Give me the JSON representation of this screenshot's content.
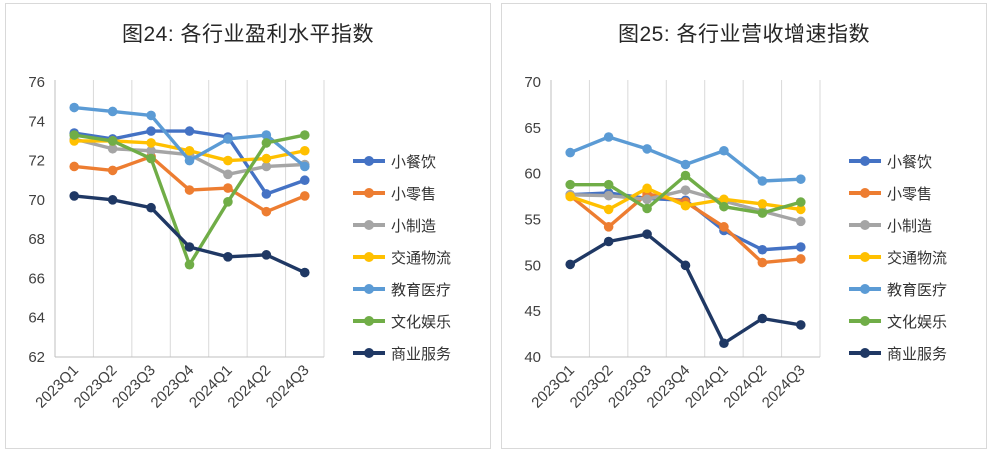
{
  "page": {
    "background": "#ffffff",
    "panel_border_color": "#d9d9d9",
    "grid_color": "#d9d9d9",
    "tick_label_color": "#404040",
    "title_color": "#262626"
  },
  "chart_data": [
    {
      "type": "line",
      "title": "图24: 各行业盈利水平指数",
      "categories": [
        "2023Q1",
        "2023Q2",
        "2023Q3",
        "2023Q4",
        "2024Q1",
        "2024Q2",
        "2024Q3"
      ],
      "ylim": [
        62,
        76
      ],
      "ytick_step": 2,
      "yticks": [
        76,
        74,
        72,
        70,
        68,
        66,
        64,
        62
      ],
      "grid": "vertical-only",
      "legend_position": "right",
      "series": [
        {
          "name": "小餐饮",
          "color": "#4472C4",
          "values": [
            73.4,
            73.1,
            73.5,
            73.5,
            73.2,
            70.3,
            71.0
          ]
        },
        {
          "name": "小零售",
          "color": "#ED7D31",
          "values": [
            71.7,
            71.5,
            72.2,
            70.5,
            70.6,
            69.4,
            70.2
          ]
        },
        {
          "name": "小制造",
          "color": "#A5A5A5",
          "values": [
            73.1,
            72.6,
            72.5,
            72.3,
            71.3,
            71.7,
            71.8
          ]
        },
        {
          "name": "交通物流",
          "color": "#FFC000",
          "values": [
            73.0,
            73.0,
            72.9,
            72.5,
            72.0,
            72.1,
            72.5
          ]
        },
        {
          "name": "教育医疗",
          "color": "#5B9BD5",
          "values": [
            74.7,
            74.5,
            74.3,
            72.0,
            73.1,
            73.3,
            71.7
          ]
        },
        {
          "name": "文化娱乐",
          "color": "#70AD47",
          "values": [
            73.3,
            73.0,
            72.1,
            66.7,
            69.9,
            72.9,
            73.3
          ]
        },
        {
          "name": "商业服务",
          "color": "#1F3864",
          "values": [
            70.2,
            70.0,
            69.6,
            67.6,
            67.1,
            67.2,
            66.3
          ]
        }
      ]
    },
    {
      "type": "line",
      "title": "图25: 各行业营收增速指数",
      "categories": [
        "2023Q1",
        "2023Q2",
        "2023Q3",
        "2023Q4",
        "2024Q1",
        "2024Q2",
        "2024Q3"
      ],
      "ylim": [
        40,
        70
      ],
      "ytick_step": 5,
      "yticks": [
        70,
        65,
        60,
        55,
        50,
        45,
        40
      ],
      "grid": "vertical-only",
      "legend_position": "right",
      "series": [
        {
          "name": "小餐饮",
          "color": "#4472C4",
          "values": [
            57.7,
            57.9,
            57.3,
            57.1,
            53.8,
            51.7,
            52.0
          ]
        },
        {
          "name": "小零售",
          "color": "#ED7D31",
          "values": [
            57.6,
            54.2,
            57.8,
            56.9,
            54.2,
            50.3,
            50.7
          ]
        },
        {
          "name": "小制造",
          "color": "#A5A5A5",
          "values": [
            57.7,
            57.6,
            57.2,
            58.2,
            57.0,
            55.9,
            54.8
          ]
        },
        {
          "name": "交通物流",
          "color": "#FFC000",
          "values": [
            57.5,
            56.1,
            58.4,
            56.5,
            57.2,
            56.7,
            56.1
          ]
        },
        {
          "name": "教育医疗",
          "color": "#5B9BD5",
          "values": [
            62.3,
            64.0,
            62.7,
            61.0,
            62.5,
            59.2,
            59.4
          ]
        },
        {
          "name": "文化娱乐",
          "color": "#70AD47",
          "values": [
            58.8,
            58.8,
            56.2,
            59.8,
            56.4,
            55.7,
            56.9
          ]
        },
        {
          "name": "商业服务",
          "color": "#1F3864",
          "values": [
            50.1,
            52.6,
            53.4,
            50.0,
            41.5,
            44.2,
            43.5
          ]
        }
      ]
    }
  ]
}
